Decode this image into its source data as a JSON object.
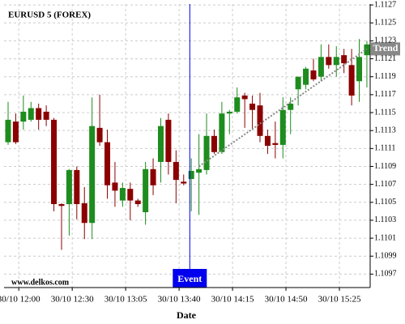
{
  "chart_data": {
    "type": "candlestick",
    "title": "EURUSD 5 (FOREX)",
    "x_label": "Date",
    "watermark": "www.delkos.com",
    "x": [
      0,
      1,
      2,
      3,
      4,
      5,
      6,
      7,
      8,
      9,
      10,
      11,
      12,
      13,
      14,
      15,
      16,
      17,
      18,
      19,
      20,
      21,
      22,
      23,
      24,
      25,
      26,
      27,
      28,
      29,
      30,
      31,
      32,
      33,
      34,
      35,
      36,
      37,
      38,
      39,
      40,
      41,
      42,
      43,
      44,
      45,
      46,
      47
    ],
    "open": [
      1.11117,
      1.1114,
      1.1114,
      1.11142,
      1.11155,
      1.11151,
      1.11142,
      1.11048,
      1.11048,
      1.11086,
      1.11049,
      1.11027,
      1.11133,
      1.11117,
      1.11072,
      1.11052,
      1.11065,
      1.11052,
      1.11039,
      1.11087,
      1.11095,
      1.11142,
      1.11095,
      1.11073,
      1.11076,
      1.11083,
      1.11086,
      1.11124,
      1.11106,
      1.11149,
      1.11151,
      1.11169,
      1.1116,
      1.11158,
      1.11124,
      1.11116,
      1.11114,
      1.11153,
      1.11176,
      1.11181,
      1.11197,
      1.1119,
      1.11212,
      1.11203,
      1.11214,
      1.11203,
      1.11185,
      1.11214
    ],
    "high": [
      1.11162,
      1.11149,
      1.11169,
      1.11162,
      1.1116,
      1.11158,
      1.11144,
      1.11049,
      1.11087,
      1.1109,
      1.11067,
      1.11167,
      1.1117,
      1.11131,
      1.11095,
      1.11072,
      1.11072,
      1.11054,
      1.11095,
      1.11099,
      1.11144,
      1.11149,
      1.11108,
      1.11081,
      1.11099,
      1.11126,
      1.11149,
      1.11131,
      1.11162,
      1.11153,
      1.11178,
      1.11172,
      1.11169,
      1.11172,
      1.11131,
      1.1114,
      1.11167,
      1.11167,
      1.1119,
      1.11201,
      1.1121,
      1.11226,
      1.11226,
      1.11224,
      1.11221,
      1.11221,
      1.11232,
      1.1123
    ],
    "low": [
      1.11114,
      1.11115,
      1.11131,
      1.1114,
      1.11131,
      1.11135,
      1.1104,
      1.10997,
      1.11013,
      1.11031,
      1.11009,
      1.11009,
      1.11113,
      1.11054,
      1.11045,
      1.11045,
      1.1103,
      1.11045,
      1.11025,
      1.11058,
      1.11072,
      1.11081,
      1.11049,
      1.11069,
      1.1104,
      1.11036,
      1.11081,
      1.11104,
      1.11104,
      1.11126,
      1.11149,
      1.11133,
      1.11131,
      1.11117,
      1.11104,
      1.11099,
      1.11099,
      1.11126,
      1.11158,
      1.11176,
      1.11185,
      1.11185,
      1.11199,
      1.1119,
      1.11194,
      1.11158,
      1.11162,
      1.11178
    ],
    "close": [
      1.11142,
      1.11117,
      1.11151,
      1.11155,
      1.11142,
      1.11142,
      1.11048,
      1.11046,
      1.11086,
      1.11048,
      1.11027,
      1.11135,
      1.11117,
      1.11069,
      1.11063,
      1.11066,
      1.11052,
      1.11048,
      1.11087,
      1.11069,
      1.11135,
      1.11095,
      1.11075,
      1.11071,
      1.11085,
      1.11087,
      1.11124,
      1.11106,
      1.11149,
      1.11151,
      1.11167,
      1.11165,
      1.11153,
      1.11124,
      1.11113,
      1.11114,
      1.11153,
      1.1116,
      1.1119,
      1.11199,
      1.11187,
      1.11212,
      1.11203,
      1.11212,
      1.11205,
      1.11169,
      1.11212,
      1.11226
    ],
    "up_color": "#1e8c1e",
    "down_color": "#8b0000",
    "xlim": [
      -0.53,
      47.43
    ],
    "ylim": [
      1.10955,
      1.11271
    ],
    "xticks": [
      {
        "value": 1.4,
        "label": "30/10 12:00"
      },
      {
        "value": 8.4,
        "label": "30/10 12:30"
      },
      {
        "value": 15.4,
        "label": "30/10 13:05"
      },
      {
        "value": 22.4,
        "label": "30/10 13:40"
      },
      {
        "value": 29.4,
        "label": "30/10 14:15"
      },
      {
        "value": 36.4,
        "label": "30/10 14:50"
      },
      {
        "value": 43.4,
        "label": "30/10 15:25"
      }
    ],
    "yticks": [
      1.1127,
      1.1125,
      1.1123,
      1.1121,
      1.1119,
      1.1117,
      1.1115,
      1.1113,
      1.1111,
      1.1109,
      1.1107,
      1.1105,
      1.1103,
      1.1101,
      1.1099,
      1.1097
    ],
    "grid": true,
    "event": {
      "x": 23.8,
      "label": "Event",
      "color": "#0000ee"
    },
    "trend": {
      "x": [
        25,
        47
      ],
      "values": [
        1.1109,
        1.11221
      ],
      "label": "Trend",
      "color": "#888888"
    }
  }
}
